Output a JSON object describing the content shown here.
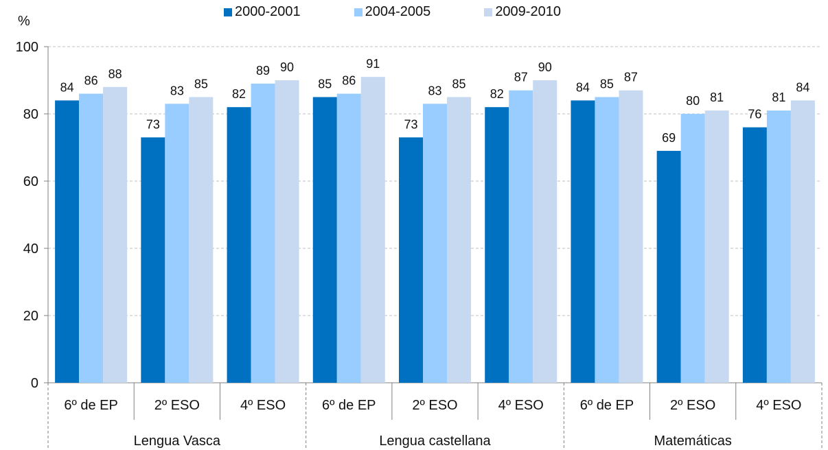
{
  "chart_data": {
    "type": "bar",
    "y_unit_label": "%",
    "ylim": [
      0,
      100
    ],
    "yticks": [
      0,
      20,
      40,
      60,
      80,
      100
    ],
    "grid": true,
    "legend_position": "top",
    "groups": [
      {
        "label": "Lengua Vasca",
        "categories": [
          "6º de EP",
          "2º ESO",
          "4º ESO"
        ]
      },
      {
        "label": "Lengua castellana",
        "categories": [
          "6º de EP",
          "2º ESO",
          "4º ESO"
        ]
      },
      {
        "label": "Matemáticas",
        "categories": [
          "6º de EP",
          "2º ESO",
          "4º ESO"
        ]
      }
    ],
    "series": [
      {
        "name": "2000-2001",
        "color": "#0070C0",
        "values": [
          84,
          73,
          82,
          85,
          73,
          82,
          84,
          69,
          76
        ],
        "labels": [
          "84",
          "73",
          "82",
          "85",
          "73",
          "82",
          "84",
          "69",
          "76"
        ]
      },
      {
        "name": "2004-2005",
        "color": "#99CCFF",
        "values": [
          86,
          83,
          89,
          86,
          83,
          87,
          85,
          80,
          81
        ],
        "labels": [
          "86",
          "83",
          "89",
          "86",
          "83",
          "87",
          "85",
          "80",
          "81"
        ]
      },
      {
        "name": "2009-2010",
        "color": "#C6D9F1",
        "values": [
          88,
          85,
          90,
          91,
          85,
          90,
          87,
          81,
          84
        ],
        "labels": [
          "88",
          "85",
          "90",
          "91",
          "85",
          "90",
          "87",
          "81",
          "84"
        ]
      }
    ]
  }
}
